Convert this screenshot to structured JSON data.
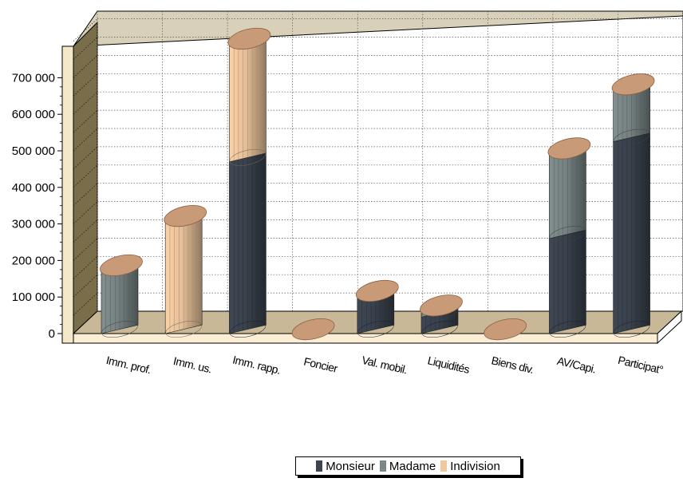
{
  "chart_data": {
    "type": "bar",
    "stacked": true,
    "style": "3d-cylinder",
    "categories": [
      "Imm. prof.",
      "Imm. us.",
      "Imm. rapp.",
      "Foncier",
      "Val. mobil.",
      "Liquidités",
      "Biens div.",
      "AV/Capi.",
      "Participat°"
    ],
    "series": [
      {
        "name": "Monsieur",
        "color": "#3c4450",
        "values": [
          0,
          0,
          470000,
          0,
          105000,
          45000,
          0,
          260000,
          525000
        ]
      },
      {
        "name": "Madame",
        "color": "#7c8888",
        "values": [
          175000,
          0,
          0,
          0,
          0,
          20000,
          0,
          235000,
          145000
        ]
      },
      {
        "name": "Indivision",
        "color": "#f0c8a0",
        "values": [
          0,
          310000,
          325000,
          0,
          0,
          0,
          0,
          0,
          0
        ]
      }
    ],
    "y_ticks": [
      "0",
      "100 000",
      "200 000",
      "300 000",
      "400 000",
      "500 000",
      "600 000",
      "700 000"
    ],
    "ylim": [
      0,
      800000
    ],
    "grid": true,
    "legend_position": "bottom"
  }
}
